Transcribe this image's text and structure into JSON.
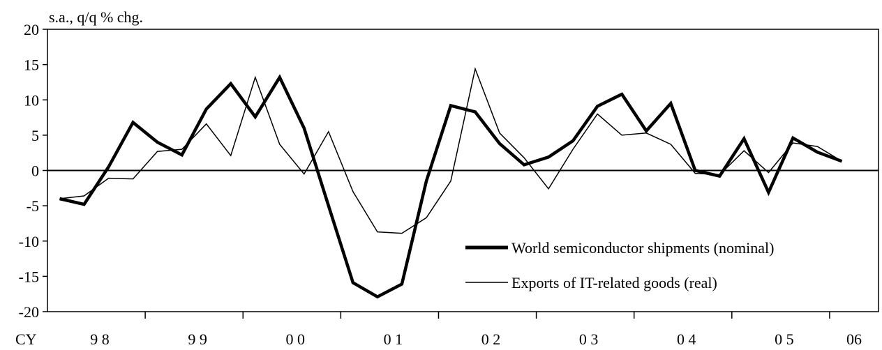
{
  "chart_data": {
    "type": "line",
    "ylabel": "s.a., q/q % chg.",
    "ylim": [
      -20,
      20
    ],
    "yticks": [
      20,
      15,
      10,
      5,
      0,
      -5,
      -10,
      -15,
      -20
    ],
    "x_axis_prefix": "CY",
    "year_labels": [
      {
        "label": "9 8",
        "at_quarter": 2
      },
      {
        "label": "9 9",
        "at_quarter": 6
      },
      {
        "label": "0 0",
        "at_quarter": 10
      },
      {
        "label": "0 1",
        "at_quarter": 14
      },
      {
        "label": "0 2",
        "at_quarter": 18
      },
      {
        "label": "0 3",
        "at_quarter": 22
      },
      {
        "label": "0 4",
        "at_quarter": 26
      },
      {
        "label": "0 5",
        "at_quarter": 30
      },
      {
        "label": "06",
        "at_quarter": 33
      }
    ],
    "x": [
      "1998Q1",
      "1998Q2",
      "1998Q3",
      "1998Q4",
      "1999Q1",
      "1999Q2",
      "1999Q3",
      "1999Q4",
      "2000Q1",
      "2000Q2",
      "2000Q3",
      "2000Q4",
      "2001Q1",
      "2001Q2",
      "2001Q3",
      "2001Q4",
      "2002Q1",
      "2002Q2",
      "2002Q3",
      "2002Q4",
      "2003Q1",
      "2003Q2",
      "2003Q3",
      "2003Q4",
      "2004Q1",
      "2004Q2",
      "2004Q3",
      "2004Q4",
      "2005Q1",
      "2005Q2",
      "2005Q3",
      "2005Q4",
      "2006Q1",
      "2006Q2"
    ],
    "series": [
      {
        "name": "World semiconductor shipments (nominal)",
        "color": "#000000",
        "style": "thick",
        "values": [
          -4.0,
          -4.8,
          0.5,
          6.8,
          4.0,
          2.2,
          8.7,
          12.3,
          7.6,
          13.2,
          6.0,
          -5.0,
          -15.9,
          -17.9,
          -16.1,
          -1.5,
          9.2,
          8.3,
          3.8,
          0.8,
          1.9,
          4.2,
          9.1,
          10.8,
          5.6,
          9.5,
          0.0,
          -0.8,
          4.5,
          -3.1,
          4.6,
          2.6,
          1.3,
          null
        ]
      },
      {
        "name": "Exports of IT-related goods (real)",
        "color": "#000000",
        "style": "thin",
        "values": [
          -4.0,
          -3.6,
          -1.1,
          -1.2,
          2.7,
          3.0,
          6.6,
          2.1,
          13.2,
          3.7,
          -0.5,
          5.5,
          -3.0,
          -8.7,
          -8.9,
          -6.7,
          -1.5,
          14.4,
          5.3,
          1.8,
          -2.6,
          3.0,
          8.0,
          5.0,
          5.3,
          3.7,
          -0.4,
          -0.6,
          2.8,
          -0.3,
          3.9,
          3.4,
          1.3,
          null
        ]
      }
    ],
    "legend_position": "bottom-right",
    "grid": false
  }
}
